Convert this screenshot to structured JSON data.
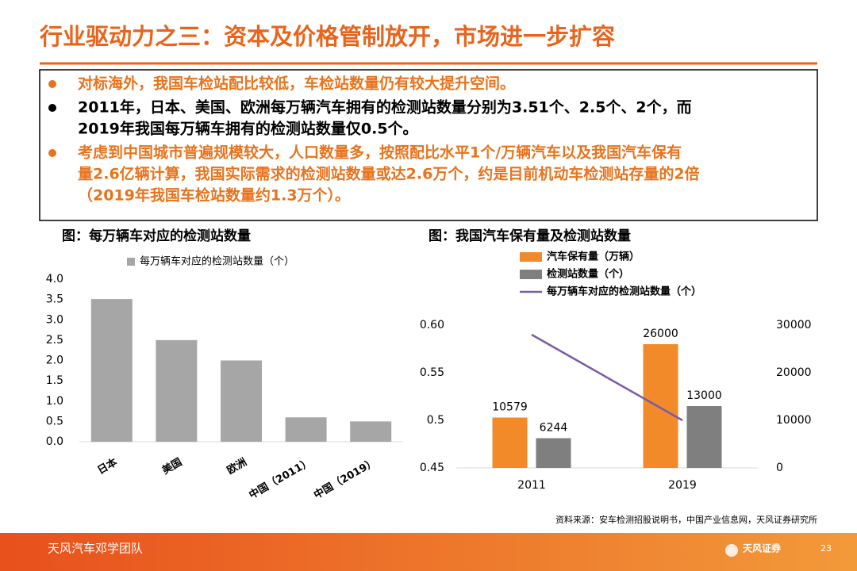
{
  "header": {
    "title": "行业驱动力之三：资本及价格管制放开，市场进一步扩容"
  },
  "bullets": [
    {
      "color": "#e8731c",
      "lines": [
        "对标海外，我国车检站配比较低，车检站数量仍有较大提升空间。"
      ]
    },
    {
      "color": "#000000",
      "lines": [
        "2011年，日本、美国、欧洲每万辆汽车拥有的检测站数量分别为3.51个、2.5个、2个，而",
        "2019年我国每万辆车拥有的检测站数量仅0.5个。"
      ]
    },
    {
      "color": "#e8731c",
      "lines": [
        "考虑到中国城市普遍规模较大，人口数量多，按照配比水平1个/万辆汽车以及我国汽车保有",
        "量2.6亿辆计算，我国实际需求的检测站数量或达2.6万个，约是目前机动车检测站存量的2倍",
        "（2019年我国车检站数量约1.3万个）。"
      ]
    }
  ],
  "chart_data": [
    {
      "type": "bar",
      "title": "图：每万辆车对应的检测站数量",
      "categories": [
        "日本",
        "美国",
        "欧洲",
        "中国（2011）",
        "中国（2019）"
      ],
      "series": [
        {
          "name": "每万辆车对应的检测站数量（个）",
          "color": "#a6a6a6",
          "values": [
            3.51,
            2.5,
            2,
            0.6,
            0.5
          ]
        }
      ],
      "ylim": [
        0,
        4
      ],
      "yticks": [
        {
          "value": 0,
          "label": "0.0"
        },
        0.5,
        {
          "value": 1,
          "label": "1.0"
        },
        1.5,
        {
          "value": 2,
          "label": "2.0"
        },
        2.5,
        {
          "value": 3,
          "label": "3.0"
        },
        3.5,
        {
          "value": 4,
          "label": "4.0"
        }
      ]
    },
    {
      "type": "combo",
      "title": "图：我国汽车保有量及检测站数量",
      "categories": [
        "2011",
        "2019"
      ],
      "series": [
        {
          "name": "汽车保有量（万辆）",
          "type": "bar",
          "axis": "y2",
          "color": "#f28a2a",
          "values": [
            10579,
            26000
          ]
        },
        {
          "name": "检测站数量（个）",
          "type": "bar",
          "axis": "y2",
          "color": "#7f7f7f",
          "values": [
            6244,
            13000
          ]
        },
        {
          "name": "每万辆车对应的检测站数量（个）",
          "type": "line",
          "color": "#7b5aa6",
          "values": [
            0.59,
            0.5
          ]
        }
      ],
      "ylim": [
        0.45,
        0.6
      ],
      "yticks": [
        {
          "value": 0.45,
          "label": "0.45"
        },
        0.5,
        {
          "value": 0.55,
          "label": "0.55"
        },
        {
          "value": 0.6,
          "label": "0.60"
        }
      ],
      "y2lim": [
        0,
        30000
      ],
      "y2ticks": [
        0,
        10000,
        20000,
        30000
      ]
    }
  ],
  "source": "资料来源：安车检测招股说明书，中国产业信息网，天风证券研究所",
  "footer": {
    "team": "天风汽车邓学团队",
    "page": "23",
    "logo": "天风证券"
  }
}
